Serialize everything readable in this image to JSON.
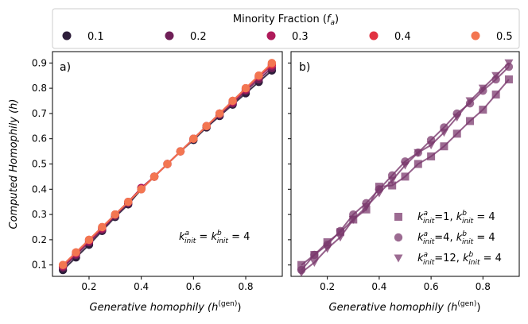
{
  "legend": {
    "title": "Minority Fraction ($f_a$)",
    "title_text": "Minority Fraction (",
    "title_sym": "f",
    "title_sub": "a",
    "title_close": ")",
    "placement": "top-center",
    "entries": [
      {
        "label": "0.1",
        "color": "#2e1e3b"
      },
      {
        "label": "0.2",
        "color": "#6f1f57"
      },
      {
        "label": "0.3",
        "color": "#af1a5a"
      },
      {
        "label": "0.4",
        "color": "#e13342"
      },
      {
        "label": "0.5",
        "color": "#f37651"
      }
    ]
  },
  "chart_data": [
    {
      "type": "line",
      "panel_label": "a)",
      "xlabel": "Generative homophily ($h^{(\\mathrm{gen})}$)",
      "xlabel_text": "Generative homophily (",
      "xlabel_sym": "h",
      "xlabel_sup": "(gen)",
      "xlabel_close": ")",
      "ylabel": "Computed Homophily ($h$)",
      "ylabel_text": "Computed Homophily (",
      "ylabel_sym": "h",
      "ylabel_close": ")",
      "xlim": [
        0.06,
        0.94
      ],
      "ylim": [
        0.055,
        0.945
      ],
      "xticks": [
        0.2,
        0.4,
        0.6,
        0.8
      ],
      "yticks": [
        0.1,
        0.2,
        0.3,
        0.4,
        0.5,
        0.6,
        0.7,
        0.8,
        0.9
      ],
      "tick_labels_x": [
        "0.2",
        "0.4",
        "0.6",
        "0.8"
      ],
      "tick_labels_y": [
        "0.1",
        "0.2",
        "0.3",
        "0.4",
        "0.5",
        "0.6",
        "0.7",
        "0.8",
        "0.9"
      ],
      "grid": false,
      "annotation": {
        "text": "$k^a_{init} = k^b_{init} = 4$",
        "sym": "k",
        "sup1": "a",
        "sub1": "init",
        "sup2": "b",
        "sub2": "init",
        "eq": " = ",
        "value": " = 4"
      },
      "x": [
        0.1,
        0.15,
        0.2,
        0.25,
        0.3,
        0.35,
        0.4,
        0.45,
        0.5,
        0.55,
        0.6,
        0.65,
        0.7,
        0.75,
        0.8,
        0.85,
        0.9
      ],
      "series": [
        {
          "name": "0.1",
          "color": "#2e1e3b",
          "values": [
            0.08,
            0.13,
            0.18,
            0.235,
            0.29,
            0.34,
            0.4,
            0.45,
            0.5,
            0.55,
            0.595,
            0.645,
            0.69,
            0.735,
            0.78,
            0.825,
            0.87
          ]
        },
        {
          "name": "0.2",
          "color": "#6f1f57",
          "values": [
            0.09,
            0.14,
            0.19,
            0.24,
            0.295,
            0.345,
            0.405,
            0.45,
            0.5,
            0.55,
            0.6,
            0.65,
            0.695,
            0.74,
            0.79,
            0.835,
            0.88
          ]
        },
        {
          "name": "0.3",
          "color": "#af1a5a",
          "values": [
            0.095,
            0.145,
            0.195,
            0.245,
            0.3,
            0.35,
            0.405,
            0.45,
            0.5,
            0.55,
            0.6,
            0.65,
            0.7,
            0.745,
            0.795,
            0.845,
            0.89
          ]
        },
        {
          "name": "0.4",
          "color": "#e13342",
          "values": [
            0.1,
            0.15,
            0.2,
            0.25,
            0.3,
            0.35,
            0.4,
            0.45,
            0.5,
            0.55,
            0.6,
            0.65,
            0.7,
            0.75,
            0.8,
            0.85,
            0.895
          ]
        },
        {
          "name": "0.5",
          "color": "#f37651",
          "values": [
            0.1,
            0.15,
            0.2,
            0.25,
            0.3,
            0.35,
            0.4,
            0.45,
            0.5,
            0.55,
            0.6,
            0.65,
            0.7,
            0.75,
            0.8,
            0.85,
            0.9
          ]
        }
      ]
    },
    {
      "type": "line",
      "panel_label": "b)",
      "xlabel": "Generative homophily ($h^{(\\mathrm{gen})}$)",
      "xlabel_text": "Generative homophily (",
      "xlabel_sym": "h",
      "xlabel_sup": "(gen)",
      "xlabel_close": ")",
      "xlim": [
        0.06,
        0.94
      ],
      "ylim": [
        0.055,
        0.945
      ],
      "xticks": [
        0.2,
        0.4,
        0.6,
        0.8
      ],
      "tick_labels_x": [
        "0.2",
        "0.4",
        "0.6",
        "0.8"
      ],
      "grid": false,
      "legend_placement": "lower-right",
      "x": [
        0.1,
        0.15,
        0.2,
        0.25,
        0.3,
        0.35,
        0.4,
        0.45,
        0.5,
        0.55,
        0.6,
        0.65,
        0.7,
        0.75,
        0.8,
        0.85,
        0.9
      ],
      "series": [
        {
          "name": "$k^a_{init}$=1, $k^b_{init} = 4$",
          "marker": "square",
          "color": "#7b3a6e",
          "values": [
            0.1,
            0.14,
            0.19,
            0.23,
            0.28,
            0.32,
            0.41,
            0.415,
            0.45,
            0.5,
            0.53,
            0.57,
            0.62,
            0.67,
            0.715,
            0.775,
            0.835
          ],
          "label_parts": {
            "sym": "k",
            "sup1": "a",
            "sub1": "init",
            "mid": "=1, ",
            "sup2": "b",
            "sub2": "init",
            "tail": " = 4"
          }
        },
        {
          "name": "$k^a_{init}$=4, $k^b_{init} = 4$",
          "marker": "circle",
          "color": "#7b3a6e",
          "values": [
            0.08,
            0.14,
            0.18,
            0.235,
            0.3,
            0.345,
            0.4,
            0.455,
            0.51,
            0.545,
            0.595,
            0.645,
            0.7,
            0.74,
            0.79,
            0.835,
            0.885
          ],
          "label_parts": {
            "sym": "k",
            "sup1": "a",
            "sub1": "init",
            "mid": "=4, ",
            "sup2": "b",
            "sub2": "init",
            "tail": " = 4"
          }
        },
        {
          "name": "$k^a_{init}$=12, $k^b_{init} = 4$",
          "marker": "triangle-down",
          "color": "#7b3a6e",
          "values": [
            0.07,
            0.11,
            0.165,
            0.21,
            0.28,
            0.33,
            0.385,
            0.435,
            0.495,
            0.545,
            0.575,
            0.625,
            0.685,
            0.75,
            0.8,
            0.85,
            0.9
          ],
          "label_parts": {
            "sym": "k",
            "sup1": "a",
            "sub1": "init",
            "mid": "=12, ",
            "sup2": "b",
            "sub2": "init",
            "tail": " = 4"
          }
        }
      ]
    }
  ]
}
